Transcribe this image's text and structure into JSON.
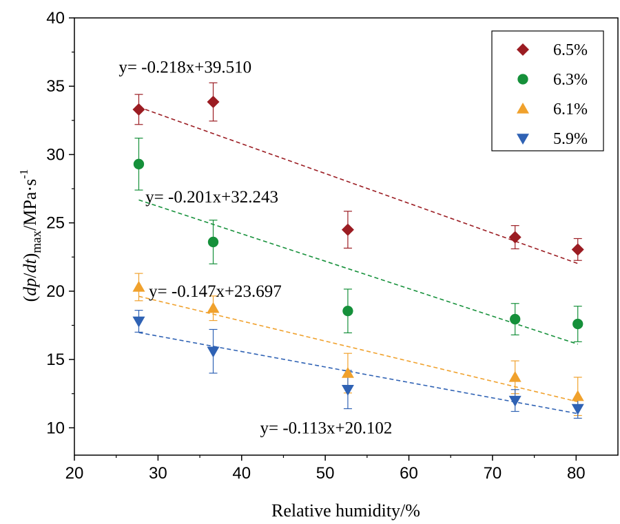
{
  "chart_data": {
    "type": "scatter",
    "xlabel": "Relative humidity/%",
    "ylabel": {
      "open": "(",
      "var": "dp",
      "slash": "/",
      "var2": "dt",
      "close": ")",
      "sub": "max",
      "unit": "/MPa·s",
      "sup": "-1"
    },
    "xlim": [
      20,
      85
    ],
    "ylim": [
      8,
      40
    ],
    "x_ticks": [
      20,
      30,
      40,
      50,
      60,
      70,
      80
    ],
    "y_ticks": [
      10,
      15,
      20,
      25,
      30,
      35,
      40
    ],
    "grid": false,
    "legend_position": "top-right",
    "x": [
      27.7,
      36.6,
      52.7,
      72.7,
      80.2
    ],
    "series": [
      {
        "name": "6.5%",
        "marker": "diamond",
        "color": "#9b1c22",
        "values": [
          33.3,
          33.85,
          24.5,
          23.95,
          23.05
        ],
        "error": [
          1.1,
          1.4,
          1.35,
          0.85,
          0.8
        ],
        "fit": {
          "slope": -0.218,
          "intercept": 39.51,
          "label": "y= -0.218x+39.510"
        }
      },
      {
        "name": "6.3%",
        "marker": "circle",
        "color": "#15903a",
        "values": [
          29.3,
          23.6,
          18.55,
          17.95,
          17.6
        ],
        "error": [
          1.9,
          1.6,
          1.6,
          1.15,
          1.3
        ],
        "fit": {
          "slope": -0.201,
          "intercept": 32.243,
          "label": "y= -0.201x+32.243"
        }
      },
      {
        "name": "6.1%",
        "marker": "triangle-up",
        "color": "#f0a12c",
        "values": [
          20.3,
          18.75,
          14.0,
          13.7,
          12.3
        ],
        "error": [
          1.0,
          0.9,
          1.45,
          1.2,
          1.4
        ],
        "fit": {
          "slope": -0.147,
          "intercept": 23.697,
          "label": "y= -0.147x+23.697"
        }
      },
      {
        "name": "5.9%",
        "marker": "triangle-down",
        "color": "#2f62b4",
        "values": [
          17.8,
          15.6,
          12.8,
          12.0,
          11.4
        ],
        "error": [
          0.8,
          1.6,
          1.4,
          0.8,
          0.7
        ],
        "fit": {
          "slope": -0.113,
          "intercept": 20.102,
          "label": "y= -0.113x+20.102"
        }
      }
    ]
  }
}
